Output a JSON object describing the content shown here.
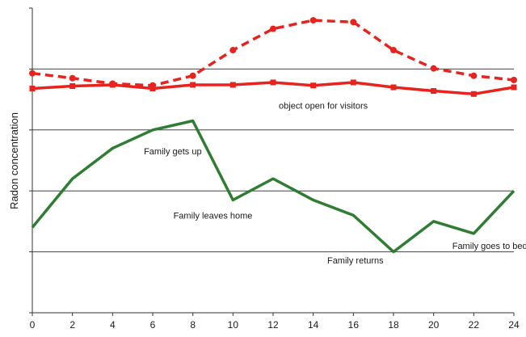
{
  "chart_data": {
    "type": "line",
    "title": "",
    "xlabel": "",
    "ylabel": "Radon concentration",
    "x": [
      0,
      2,
      4,
      6,
      8,
      10,
      12,
      14,
      16,
      18,
      20,
      22,
      24
    ],
    "xlim": [
      0,
      24
    ],
    "ylim": [
      0,
      5
    ],
    "grid": "horizontal",
    "x_ticks": [
      "0",
      "2",
      "4",
      "6",
      "8",
      "10",
      "12",
      "14",
      "16",
      "18",
      "20",
      "22",
      "24"
    ],
    "series": [
      {
        "name": "",
        "color": "#e8231e",
        "style": "dashed",
        "marker": "circle",
        "values": [
          3.93,
          3.85,
          3.76,
          3.73,
          3.89,
          4.31,
          4.66,
          4.8,
          4.77,
          4.31,
          4.01,
          3.89,
          3.82
        ]
      },
      {
        "name": "",
        "color": "#e8231e",
        "style": "solid",
        "marker": "square",
        "values": [
          3.68,
          3.72,
          3.74,
          3.68,
          3.74,
          3.74,
          3.78,
          3.73,
          3.78,
          3.7,
          3.64,
          3.59,
          3.7
        ]
      },
      {
        "name": "",
        "color": "#2e7d32",
        "style": "solid",
        "marker": "none",
        "values": [
          1.4,
          2.2,
          2.7,
          3.0,
          3.15,
          1.85,
          2.2,
          1.85,
          1.6,
          1.0,
          1.5,
          1.3,
          2.0
        ]
      }
    ],
    "annotations": [
      {
        "text": "object open for visitors",
        "x": 14.5,
        "y": 3.4
      },
      {
        "text": "Family gets up",
        "x": 7.0,
        "y": 2.65
      },
      {
        "text": "Family leaves home",
        "x": 9.0,
        "y": 1.6
      },
      {
        "text": "Family returns",
        "x": 16.1,
        "y": 0.86
      },
      {
        "text": "Family goes to bed",
        "x": 22.8,
        "y": 1.1
      }
    ]
  }
}
